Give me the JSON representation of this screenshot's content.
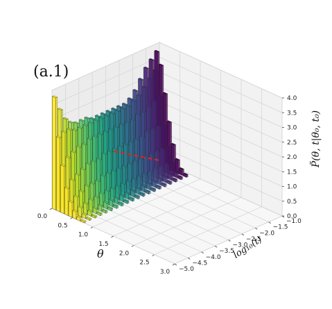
{
  "chart_data": {
    "type": "bar3d",
    "panel_label": "(a.1)",
    "xlabel": "θ",
    "ylabel": "log₁₀(t)",
    "zlabel": "P̃(θ, t|θ₀, t₀)",
    "x_ticks": [
      "0.0",
      "0.5",
      "1.0",
      "1.5",
      "2.0",
      "2.5",
      "3.0"
    ],
    "y_ticks": [
      "−5.0",
      "−4.5",
      "−4.0",
      "−3.5",
      "−3.0",
      "−2.5",
      "−2.0",
      "−1.5",
      "−1.0"
    ],
    "z_ticks": [
      "0.0",
      "0.5",
      "1.0",
      "1.5",
      "2.0",
      "2.5",
      "3.0",
      "3.5",
      "4.0"
    ],
    "xlim": [
      0,
      3.0
    ],
    "ylim": [
      -5.0,
      -1.0
    ],
    "zlim": [
      0,
      4.0
    ],
    "colormap": "viridis",
    "grid": true,
    "theta_bins": [
      0.05,
      0.15,
      0.25,
      0.35,
      0.45,
      0.55,
      0.65,
      0.75
    ],
    "series": [
      {
        "log10_t": -5.0,
        "values": [
          3.8,
          2.5,
          1.6,
          0.9,
          0.5,
          0.25,
          0.1,
          0.05
        ]
      },
      {
        "log10_t": -4.8,
        "values": [
          3.3,
          2.6,
          1.8,
          1.1,
          0.6,
          0.3,
          0.12,
          0.05
        ]
      },
      {
        "log10_t": -4.6,
        "values": [
          2.9,
          2.6,
          1.9,
          1.2,
          0.7,
          0.35,
          0.15,
          0.06
        ]
      },
      {
        "log10_t": -4.4,
        "values": [
          2.7,
          2.5,
          2.0,
          1.3,
          0.8,
          0.4,
          0.17,
          0.07
        ]
      },
      {
        "log10_t": -4.2,
        "values": [
          2.6,
          2.5,
          2.0,
          1.4,
          0.8,
          0.4,
          0.18,
          0.07
        ]
      },
      {
        "log10_t": -4.0,
        "values": [
          2.6,
          2.5,
          2.1,
          1.4,
          0.8,
          0.45,
          0.2,
          0.08
        ]
      },
      {
        "log10_t": -3.8,
        "values": [
          2.6,
          2.5,
          2.1,
          1.4,
          0.9,
          0.45,
          0.2,
          0.08
        ]
      },
      {
        "log10_t": -3.6,
        "values": [
          2.5,
          2.5,
          2.1,
          1.5,
          0.9,
          0.45,
          0.2,
          0.08
        ]
      },
      {
        "log10_t": -3.4,
        "values": [
          2.5,
          2.5,
          2.1,
          1.5,
          0.9,
          0.45,
          0.2,
          0.08
        ]
      },
      {
        "log10_t": -3.2,
        "values": [
          2.5,
          2.5,
          2.1,
          1.5,
          0.9,
          0.45,
          0.2,
          0.08
        ]
      },
      {
        "log10_t": -3.0,
        "values": [
          2.5,
          2.5,
          2.1,
          1.5,
          0.9,
          0.45,
          0.2,
          0.08
        ]
      },
      {
        "log10_t": -2.8,
        "values": [
          2.5,
          2.5,
          2.1,
          1.5,
          0.9,
          0.45,
          0.2,
          0.08
        ]
      },
      {
        "log10_t": -2.6,
        "values": [
          2.5,
          2.5,
          2.1,
          1.5,
          0.9,
          0.45,
          0.2,
          0.08
        ]
      },
      {
        "log10_t": -2.4,
        "values": [
          2.5,
          2.5,
          2.1,
          1.5,
          0.9,
          0.45,
          0.2,
          0.08
        ]
      },
      {
        "log10_t": -2.2,
        "values": [
          2.6,
          2.6,
          2.2,
          1.5,
          0.9,
          0.45,
          0.2,
          0.08
        ]
      },
      {
        "log10_t": -2.0,
        "values": [
          2.8,
          2.7,
          2.2,
          1.6,
          0.9,
          0.45,
          0.2,
          0.08
        ]
      },
      {
        "log10_t": -1.8,
        "values": [
          3.1,
          2.9,
          2.3,
          1.6,
          0.9,
          0.45,
          0.2,
          0.08
        ]
      },
      {
        "log10_t": -1.6,
        "values": [
          3.4,
          3.1,
          2.4,
          1.6,
          0.9,
          0.45,
          0.2,
          0.08
        ]
      },
      {
        "log10_t": -1.4,
        "values": [
          3.6,
          3.3,
          2.5,
          1.6,
          0.9,
          0.45,
          0.2,
          0.08
        ]
      },
      {
        "log10_t": -1.2,
        "values": [
          3.8,
          3.4,
          2.5,
          1.6,
          0.9,
          0.45,
          0.2,
          0.08
        ]
      }
    ],
    "dashed_line": {
      "color": "#e8211d",
      "points": [
        [
          0.0,
          -2.7,
          1.0
        ],
        [
          0.0,
          -1.0,
          0.0
        ]
      ]
    }
  }
}
